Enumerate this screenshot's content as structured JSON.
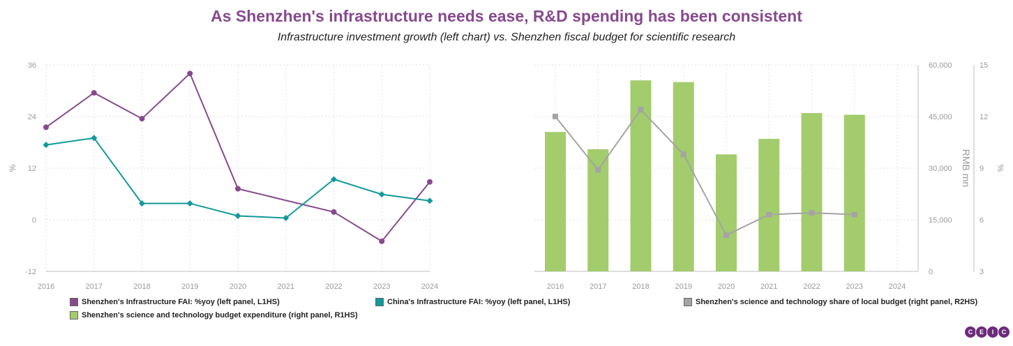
{
  "title": "As Shenzhen's infrastructure needs ease, R&D spending has been consistent",
  "subtitle": "Infrastructure investment growth (left chart) vs. Shenzhen fiscal budget for scientific research",
  "colors": {
    "title": "#87498e",
    "purple": "#87498e",
    "teal": "#13999a",
    "green": "#a3cc6c",
    "gray": "#a4a4a4"
  },
  "legend": [
    {
      "label": "Shenzhen's Infrastructure FAI: %yoy (left panel, L1HS)",
      "color": "#87498e"
    },
    {
      "label": "China's Infrastructure FAI: %yoy (left panel, L1HS)",
      "color": "#13999a"
    },
    {
      "label": "Shenzhen's science and technology share of local budget (right panel, R2HS)",
      "color": "#a4a4a4"
    },
    {
      "label": "Shenzhen's science and technology budget expenditure (right panel, R1HS)",
      "color": "#a3cc6c"
    }
  ],
  "logo": [
    "C",
    "E",
    "I",
    "C"
  ],
  "chart_data": [
    {
      "type": "line",
      "x": [
        "2016",
        "2017",
        "2018",
        "2019",
        "2020",
        "2021",
        "2022",
        "2023",
        "2024"
      ],
      "ylabel": "%",
      "ylim": [
        -12,
        36
      ],
      "yticks": [
        "36",
        "24",
        "12",
        "0",
        "-12"
      ],
      "grid": true,
      "series": [
        {
          "name": "Shenzhen's Infrastructure FAI: %yoy (left panel, L1HS)",
          "points": [
            [
              "2016",
              21.5
            ],
            [
              "2017",
              29.5
            ],
            [
              "2018",
              23.5
            ],
            [
              "2019",
              34
            ],
            [
              "2020",
              7.2
            ],
            [
              "2022",
              1.8
            ],
            [
              "2023",
              -5
            ],
            [
              "2024",
              8.8
            ]
          ]
        },
        {
          "name": "China's Infrastructure FAI: %yoy (left panel, L1HS)",
          "points": [
            [
              "2016",
              17.4
            ],
            [
              "2017",
              19
            ],
            [
              "2018",
              3.8
            ],
            [
              "2019",
              3.8
            ],
            [
              "2020",
              0.9
            ],
            [
              "2021",
              0.4
            ],
            [
              "2022",
              9.4
            ],
            [
              "2023",
              5.9
            ],
            [
              "2024",
              4.4
            ]
          ]
        }
      ]
    },
    {
      "type": "bar",
      "x": [
        "2016",
        "2017",
        "2018",
        "2019",
        "2020",
        "2021",
        "2022",
        "2023",
        "2024"
      ],
      "ylabel": "RMB mn",
      "ylim": [
        0,
        60000
      ],
      "yticks": [
        "60,000",
        "45,000",
        "30,000",
        "15,000",
        "0"
      ],
      "y2label": "%",
      "y2lim": [
        3,
        15
      ],
      "y2ticks": [
        "15",
        "12",
        "9",
        "6",
        "3"
      ],
      "grid": true,
      "series": [
        {
          "name": "Shenzhen's science and technology budget expenditure (right panel, R1HS)",
          "type": "bar",
          "axis": "left",
          "values": [
            40500,
            35500,
            55500,
            55000,
            34000,
            38500,
            46000,
            45500,
            null
          ]
        },
        {
          "name": "Shenzhen's science and technology share of local budget (right panel, R2HS)",
          "type": "line",
          "axis": "right",
          "values": [
            12,
            8.9,
            12.4,
            9.8,
            5.1,
            6.3,
            6.4,
            6.3,
            null
          ]
        }
      ]
    }
  ]
}
